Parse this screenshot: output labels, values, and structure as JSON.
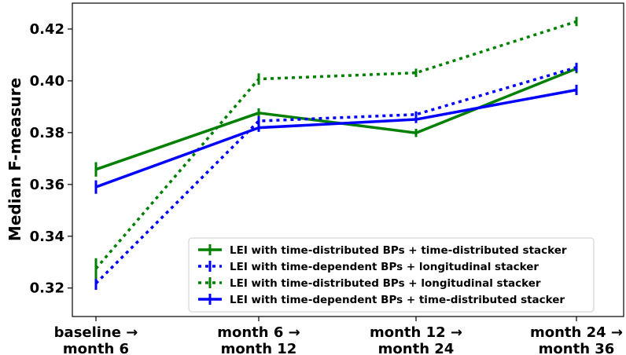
{
  "chart_data": {
    "type": "line",
    "categories": [
      [
        "baseline →",
        "month 6"
      ],
      [
        "month 6 →",
        "month 12"
      ],
      [
        "month 12 →",
        "month 24"
      ],
      [
        "month 24 →",
        "month 36"
      ]
    ],
    "ylabel": "Median F-measure",
    "ylim": [
      0.309,
      0.43
    ],
    "yticks": [
      0.32,
      0.34,
      0.36,
      0.38,
      0.4,
      0.42
    ],
    "ytick_labels": [
      "0.32",
      "0.34",
      "0.36",
      "0.38",
      "0.40",
      "0.42"
    ],
    "legend_position": "lower-right",
    "series": [
      {
        "name": "LEI with time-distributed BPs + time-distributed stacker",
        "color": "#008000",
        "style": "solid",
        "values": [
          0.3658,
          0.3876,
          0.3799,
          0.4047
        ],
        "errors": [
          0.0028,
          0.0018,
          0.0016,
          0.0018
        ]
      },
      {
        "name": "LEI with time-dependent BPs + longitudinal stacker",
        "color": "#0000ff",
        "style": "dotted",
        "values": [
          0.3218,
          0.3845,
          0.387,
          0.4052
        ],
        "errors": [
          0.0025,
          0.0018,
          0.0012,
          0.0018
        ]
      },
      {
        "name": "LEI with time-distributed BPs + longitudinal stacker",
        "color": "#008000",
        "style": "dotted",
        "values": [
          0.3275,
          0.4007,
          0.4031,
          0.4229
        ],
        "errors": [
          0.004,
          0.0022,
          0.0016,
          0.0018
        ]
      },
      {
        "name": "LEI with time-dependent BPs + time-distributed stacker",
        "color": "#0000ff",
        "style": "solid",
        "values": [
          0.359,
          0.3819,
          0.3851,
          0.3965
        ],
        "errors": [
          0.0026,
          0.0016,
          0.0014,
          0.002
        ]
      }
    ]
  }
}
